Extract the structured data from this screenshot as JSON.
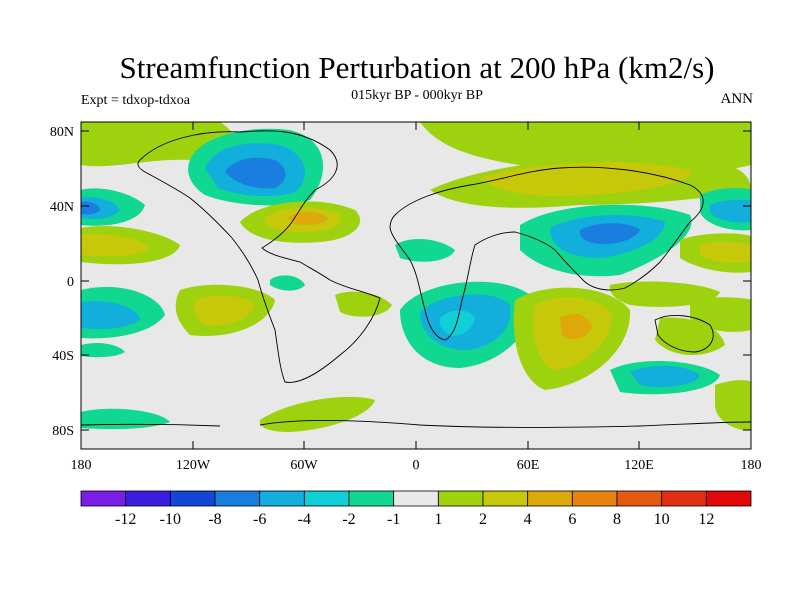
{
  "title": "Streamfunction Perturbation at 200 hPa (km2/s)",
  "subtitle": "015kyr BP - 000kyr BP",
  "left_label": "Expt = tdxop-tdxoa",
  "right_label": "ANN",
  "axes": {
    "lat_ticks": [
      "80N",
      "40N",
      "0",
      "40S",
      "80S"
    ],
    "lon_ticks": [
      "180",
      "120W",
      "60W",
      "0",
      "60E",
      "120E",
      "180"
    ]
  },
  "colorbar": {
    "labels": [
      "-12",
      "-10",
      "-8",
      "-6",
      "-4",
      "-2",
      "-1",
      "1",
      "2",
      "4",
      "6",
      "8",
      "10",
      "12"
    ],
    "colors": [
      "#7a1ee6",
      "#3a1ee0",
      "#1446d6",
      "#1a7ee0",
      "#12aedc",
      "#10cfd6",
      "#10d890",
      "#e8e8e8",
      "#9ed20e",
      "#c8c80a",
      "#dca80a",
      "#e6840e",
      "#e45a10",
      "#e22e12",
      "#e00808"
    ]
  },
  "colors": {
    "background_field": "#e8e8e8",
    "coastline": "#000000"
  }
}
